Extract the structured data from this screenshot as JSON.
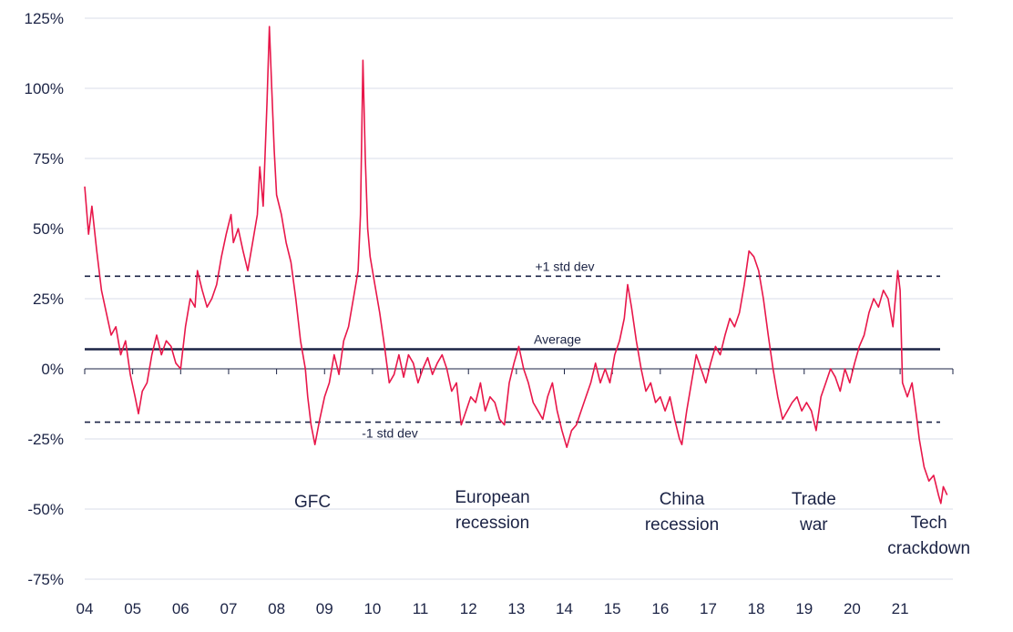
{
  "chart_data": {
    "type": "line",
    "title": "",
    "xlabel": "",
    "ylabel": "",
    "ylim": [
      -75,
      125
    ],
    "y_ticks": [
      125,
      100,
      75,
      50,
      25,
      0,
      -25,
      -50,
      -75
    ],
    "y_tick_labels": [
      "125%",
      "100%",
      "75%",
      "50%",
      "25%",
      "0%",
      "-25%",
      "-50%",
      "-75%"
    ],
    "x_ticks": [
      2004,
      2005,
      2006,
      2007,
      2008,
      2009,
      2010,
      2011,
      2012,
      2013,
      2014,
      2015,
      2016,
      2017,
      2018,
      2019,
      2020,
      2021
    ],
    "x_tick_labels": [
      "04",
      "05",
      "06",
      "07",
      "08",
      "09",
      "10",
      "11",
      "12",
      "13",
      "14",
      "15",
      "16",
      "17",
      "18",
      "19",
      "20",
      "21"
    ],
    "xlim": [
      2004,
      2022.1
    ],
    "grid": true,
    "line_color": "#e8174a",
    "reference_lines": [
      {
        "label": "+1 std dev",
        "value": 33,
        "style": "dashed"
      },
      {
        "label": "Average",
        "value": 7,
        "style": "solid"
      },
      {
        "label": "-1 std dev",
        "value": -19,
        "style": "dashed"
      }
    ],
    "annotations": [
      {
        "lines": [
          "GFC"
        ],
        "x": 2008.75
      },
      {
        "lines": [
          "European",
          "recession"
        ],
        "x": 2012.5
      },
      {
        "lines": [
          "China",
          "recession"
        ],
        "x": 2016.45
      },
      {
        "lines": [
          "Trade",
          "war"
        ],
        "x": 2019.2
      },
      {
        "lines": [
          "Tech",
          "crackdown"
        ],
        "x": 2021.6
      }
    ],
    "series": [
      {
        "values": [
          [
            2004.0,
            65
          ],
          [
            2004.08,
            48
          ],
          [
            2004.15,
            58
          ],
          [
            2004.25,
            42
          ],
          [
            2004.35,
            28
          ],
          [
            2004.45,
            20
          ],
          [
            2004.55,
            12
          ],
          [
            2004.65,
            15
          ],
          [
            2004.75,
            5
          ],
          [
            2004.85,
            10
          ],
          [
            2004.95,
            -2
          ],
          [
            2005.05,
            -10
          ],
          [
            2005.12,
            -16
          ],
          [
            2005.2,
            -8
          ],
          [
            2005.3,
            -5
          ],
          [
            2005.4,
            5
          ],
          [
            2005.5,
            12
          ],
          [
            2005.6,
            5
          ],
          [
            2005.7,
            10
          ],
          [
            2005.8,
            8
          ],
          [
            2005.9,
            2
          ],
          [
            2006.0,
            0
          ],
          [
            2006.1,
            15
          ],
          [
            2006.2,
            25
          ],
          [
            2006.3,
            22
          ],
          [
            2006.35,
            35
          ],
          [
            2006.45,
            28
          ],
          [
            2006.55,
            22
          ],
          [
            2006.65,
            25
          ],
          [
            2006.75,
            30
          ],
          [
            2006.85,
            40
          ],
          [
            2006.95,
            48
          ],
          [
            2007.05,
            55
          ],
          [
            2007.1,
            45
          ],
          [
            2007.2,
            50
          ],
          [
            2007.3,
            42
          ],
          [
            2007.4,
            35
          ],
          [
            2007.5,
            45
          ],
          [
            2007.6,
            55
          ],
          [
            2007.65,
            72
          ],
          [
            2007.72,
            58
          ],
          [
            2007.8,
            95
          ],
          [
            2007.85,
            122
          ],
          [
            2007.9,
            100
          ],
          [
            2007.95,
            78
          ],
          [
            2008.0,
            62
          ],
          [
            2008.1,
            55
          ],
          [
            2008.2,
            45
          ],
          [
            2008.3,
            38
          ],
          [
            2008.4,
            25
          ],
          [
            2008.5,
            10
          ],
          [
            2008.6,
            0
          ],
          [
            2008.65,
            -10
          ],
          [
            2008.72,
            -20
          ],
          [
            2008.8,
            -27
          ],
          [
            2008.9,
            -18
          ],
          [
            2009.0,
            -10
          ],
          [
            2009.1,
            -5
          ],
          [
            2009.2,
            5
          ],
          [
            2009.3,
            -2
          ],
          [
            2009.4,
            10
          ],
          [
            2009.5,
            15
          ],
          [
            2009.6,
            25
          ],
          [
            2009.7,
            35
          ],
          [
            2009.75,
            55
          ],
          [
            2009.8,
            110
          ],
          [
            2009.85,
            75
          ],
          [
            2009.9,
            50
          ],
          [
            2009.95,
            40
          ],
          [
            2010.05,
            30
          ],
          [
            2010.15,
            20
          ],
          [
            2010.25,
            8
          ],
          [
            2010.35,
            -5
          ],
          [
            2010.45,
            -2
          ],
          [
            2010.55,
            5
          ],
          [
            2010.65,
            -3
          ],
          [
            2010.75,
            5
          ],
          [
            2010.85,
            2
          ],
          [
            2010.95,
            -5
          ],
          [
            2011.05,
            0
          ],
          [
            2011.15,
            4
          ],
          [
            2011.25,
            -2
          ],
          [
            2011.35,
            2
          ],
          [
            2011.45,
            5
          ],
          [
            2011.55,
            0
          ],
          [
            2011.65,
            -8
          ],
          [
            2011.75,
            -5
          ],
          [
            2011.85,
            -20
          ],
          [
            2011.95,
            -15
          ],
          [
            2012.05,
            -10
          ],
          [
            2012.15,
            -12
          ],
          [
            2012.25,
            -5
          ],
          [
            2012.35,
            -15
          ],
          [
            2012.45,
            -10
          ],
          [
            2012.55,
            -12
          ],
          [
            2012.65,
            -18
          ],
          [
            2012.75,
            -20
          ],
          [
            2012.85,
            -5
          ],
          [
            2012.95,
            2
          ],
          [
            2013.05,
            8
          ],
          [
            2013.15,
            0
          ],
          [
            2013.25,
            -5
          ],
          [
            2013.35,
            -12
          ],
          [
            2013.45,
            -15
          ],
          [
            2013.55,
            -18
          ],
          [
            2013.65,
            -10
          ],
          [
            2013.75,
            -5
          ],
          [
            2013.85,
            -15
          ],
          [
            2013.95,
            -22
          ],
          [
            2014.05,
            -28
          ],
          [
            2014.15,
            -22
          ],
          [
            2014.25,
            -20
          ],
          [
            2014.35,
            -15
          ],
          [
            2014.45,
            -10
          ],
          [
            2014.55,
            -5
          ],
          [
            2014.65,
            2
          ],
          [
            2014.75,
            -5
          ],
          [
            2014.85,
            0
          ],
          [
            2014.95,
            -5
          ],
          [
            2015.05,
            5
          ],
          [
            2015.15,
            10
          ],
          [
            2015.25,
            18
          ],
          [
            2015.32,
            30
          ],
          [
            2015.4,
            22
          ],
          [
            2015.5,
            10
          ],
          [
            2015.6,
            0
          ],
          [
            2015.7,
            -8
          ],
          [
            2015.8,
            -5
          ],
          [
            2015.9,
            -12
          ],
          [
            2016.0,
            -10
          ],
          [
            2016.1,
            -15
          ],
          [
            2016.2,
            -10
          ],
          [
            2016.3,
            -18
          ],
          [
            2016.4,
            -25
          ],
          [
            2016.45,
            -27
          ],
          [
            2016.55,
            -15
          ],
          [
            2016.65,
            -5
          ],
          [
            2016.75,
            5
          ],
          [
            2016.85,
            0
          ],
          [
            2016.95,
            -5
          ],
          [
            2017.05,
            2
          ],
          [
            2017.15,
            8
          ],
          [
            2017.25,
            5
          ],
          [
            2017.35,
            12
          ],
          [
            2017.45,
            18
          ],
          [
            2017.55,
            15
          ],
          [
            2017.65,
            20
          ],
          [
            2017.75,
            30
          ],
          [
            2017.85,
            42
          ],
          [
            2017.95,
            40
          ],
          [
            2018.05,
            35
          ],
          [
            2018.15,
            25
          ],
          [
            2018.25,
            12
          ],
          [
            2018.35,
            0
          ],
          [
            2018.45,
            -10
          ],
          [
            2018.55,
            -18
          ],
          [
            2018.65,
            -15
          ],
          [
            2018.75,
            -12
          ],
          [
            2018.85,
            -10
          ],
          [
            2018.95,
            -15
          ],
          [
            2019.05,
            -12
          ],
          [
            2019.15,
            -15
          ],
          [
            2019.25,
            -22
          ],
          [
            2019.35,
            -10
          ],
          [
            2019.45,
            -5
          ],
          [
            2019.55,
            0
          ],
          [
            2019.65,
            -3
          ],
          [
            2019.75,
            -8
          ],
          [
            2019.85,
            0
          ],
          [
            2019.95,
            -5
          ],
          [
            2020.05,
            2
          ],
          [
            2020.15,
            8
          ],
          [
            2020.25,
            12
          ],
          [
            2020.35,
            20
          ],
          [
            2020.45,
            25
          ],
          [
            2020.55,
            22
          ],
          [
            2020.65,
            28
          ],
          [
            2020.75,
            25
          ],
          [
            2020.85,
            15
          ],
          [
            2020.95,
            35
          ],
          [
            2021.0,
            28
          ],
          [
            2021.05,
            -5
          ],
          [
            2021.15,
            -10
          ],
          [
            2021.25,
            -5
          ],
          [
            2021.35,
            -18
          ],
          [
            2021.4,
            -25
          ],
          [
            2021.5,
            -35
          ],
          [
            2021.6,
            -40
          ],
          [
            2021.7,
            -38
          ],
          [
            2021.8,
            -45
          ],
          [
            2021.85,
            -48
          ],
          [
            2021.9,
            -42
          ],
          [
            2021.98,
            -45
          ]
        ]
      }
    ]
  }
}
